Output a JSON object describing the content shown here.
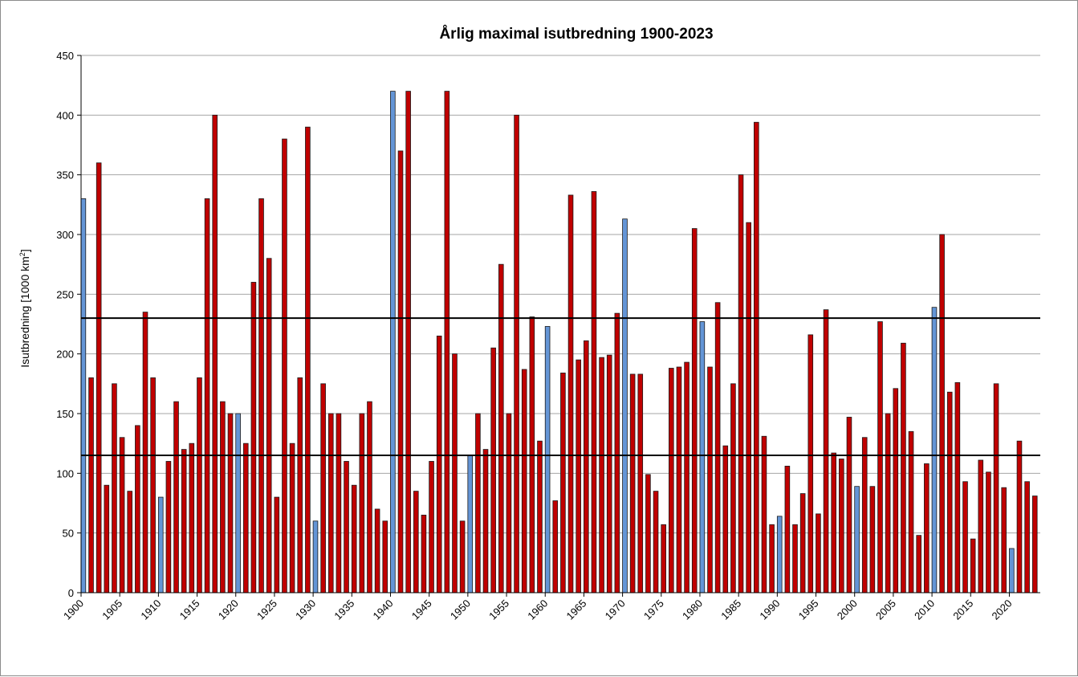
{
  "chart_data": {
    "type": "bar",
    "title": "Årlig maximal isutbredning 1900-2023",
    "ylabel": "Isutbredning [1000 km",
    "ylabel_sup": "2",
    "ylabel_suffix": "]",
    "xlabel": "",
    "ylim": [
      0,
      450
    ],
    "yticks": [
      0,
      50,
      100,
      150,
      200,
      250,
      300,
      350,
      400,
      450
    ],
    "xticks": [
      1900,
      1905,
      1910,
      1915,
      1920,
      1925,
      1930,
      1935,
      1940,
      1945,
      1950,
      1955,
      1960,
      1965,
      1970,
      1975,
      1980,
      1985,
      1990,
      1995,
      2000,
      2005,
      2010,
      2015,
      2020
    ],
    "grid": "horizontal",
    "reference_lines": [
      230,
      115
    ],
    "colors": {
      "bar": "#c00000",
      "highlight": "#6495d6",
      "grid": "#a6a6a6",
      "reference": "#000000"
    },
    "highlight_years": [
      1900,
      1910,
      1920,
      1930,
      1940,
      1950,
      1960,
      1970,
      1980,
      1990,
      2000,
      2010,
      2020
    ],
    "x": [
      1900,
      1901,
      1902,
      1903,
      1904,
      1905,
      1906,
      1907,
      1908,
      1909,
      1910,
      1911,
      1912,
      1913,
      1914,
      1915,
      1916,
      1917,
      1918,
      1919,
      1920,
      1921,
      1922,
      1923,
      1924,
      1925,
      1926,
      1927,
      1928,
      1929,
      1930,
      1931,
      1932,
      1933,
      1934,
      1935,
      1936,
      1937,
      1938,
      1939,
      1940,
      1941,
      1942,
      1943,
      1944,
      1945,
      1946,
      1947,
      1948,
      1949,
      1950,
      1951,
      1952,
      1953,
      1954,
      1955,
      1956,
      1957,
      1958,
      1959,
      1960,
      1961,
      1962,
      1963,
      1964,
      1965,
      1966,
      1967,
      1968,
      1969,
      1970,
      1971,
      1972,
      1973,
      1974,
      1975,
      1976,
      1977,
      1978,
      1979,
      1980,
      1981,
      1982,
      1983,
      1984,
      1985,
      1986,
      1987,
      1988,
      1989,
      1990,
      1991,
      1992,
      1993,
      1994,
      1995,
      1996,
      1997,
      1998,
      1999,
      2000,
      2001,
      2002,
      2003,
      2004,
      2005,
      2006,
      2007,
      2008,
      2009,
      2010,
      2011,
      2012,
      2013,
      2014,
      2015,
      2016,
      2017,
      2018,
      2019,
      2020,
      2021,
      2022,
      2023
    ],
    "values": [
      330,
      180,
      360,
      90,
      175,
      130,
      85,
      140,
      235,
      180,
      80,
      110,
      160,
      120,
      125,
      180,
      330,
      400,
      160,
      150,
      150,
      125,
      260,
      330,
      280,
      80,
      380,
      125,
      180,
      390,
      60,
      175,
      150,
      150,
      110,
      90,
      150,
      160,
      70,
      60,
      420,
      370,
      420,
      85,
      65,
      110,
      215,
      420,
      200,
      60,
      115,
      150,
      120,
      205,
      275,
      150,
      400,
      187,
      231,
      127,
      223,
      77,
      184,
      333,
      195,
      211,
      336,
      197,
      199,
      234,
      313,
      183,
      183,
      99,
      85,
      57,
      188,
      189,
      193,
      305,
      227,
      189,
      243,
      123,
      175,
      350,
      310,
      394,
      131,
      57,
      64,
      106,
      57,
      83,
      216,
      66,
      237,
      117,
      112,
      147,
      89,
      130,
      89,
      227,
      150,
      171,
      209,
      135,
      48,
      108,
      239,
      300,
      168,
      176,
      93,
      45,
      111,
      101,
      175,
      88,
      37,
      127,
      93,
      81
    ]
  }
}
